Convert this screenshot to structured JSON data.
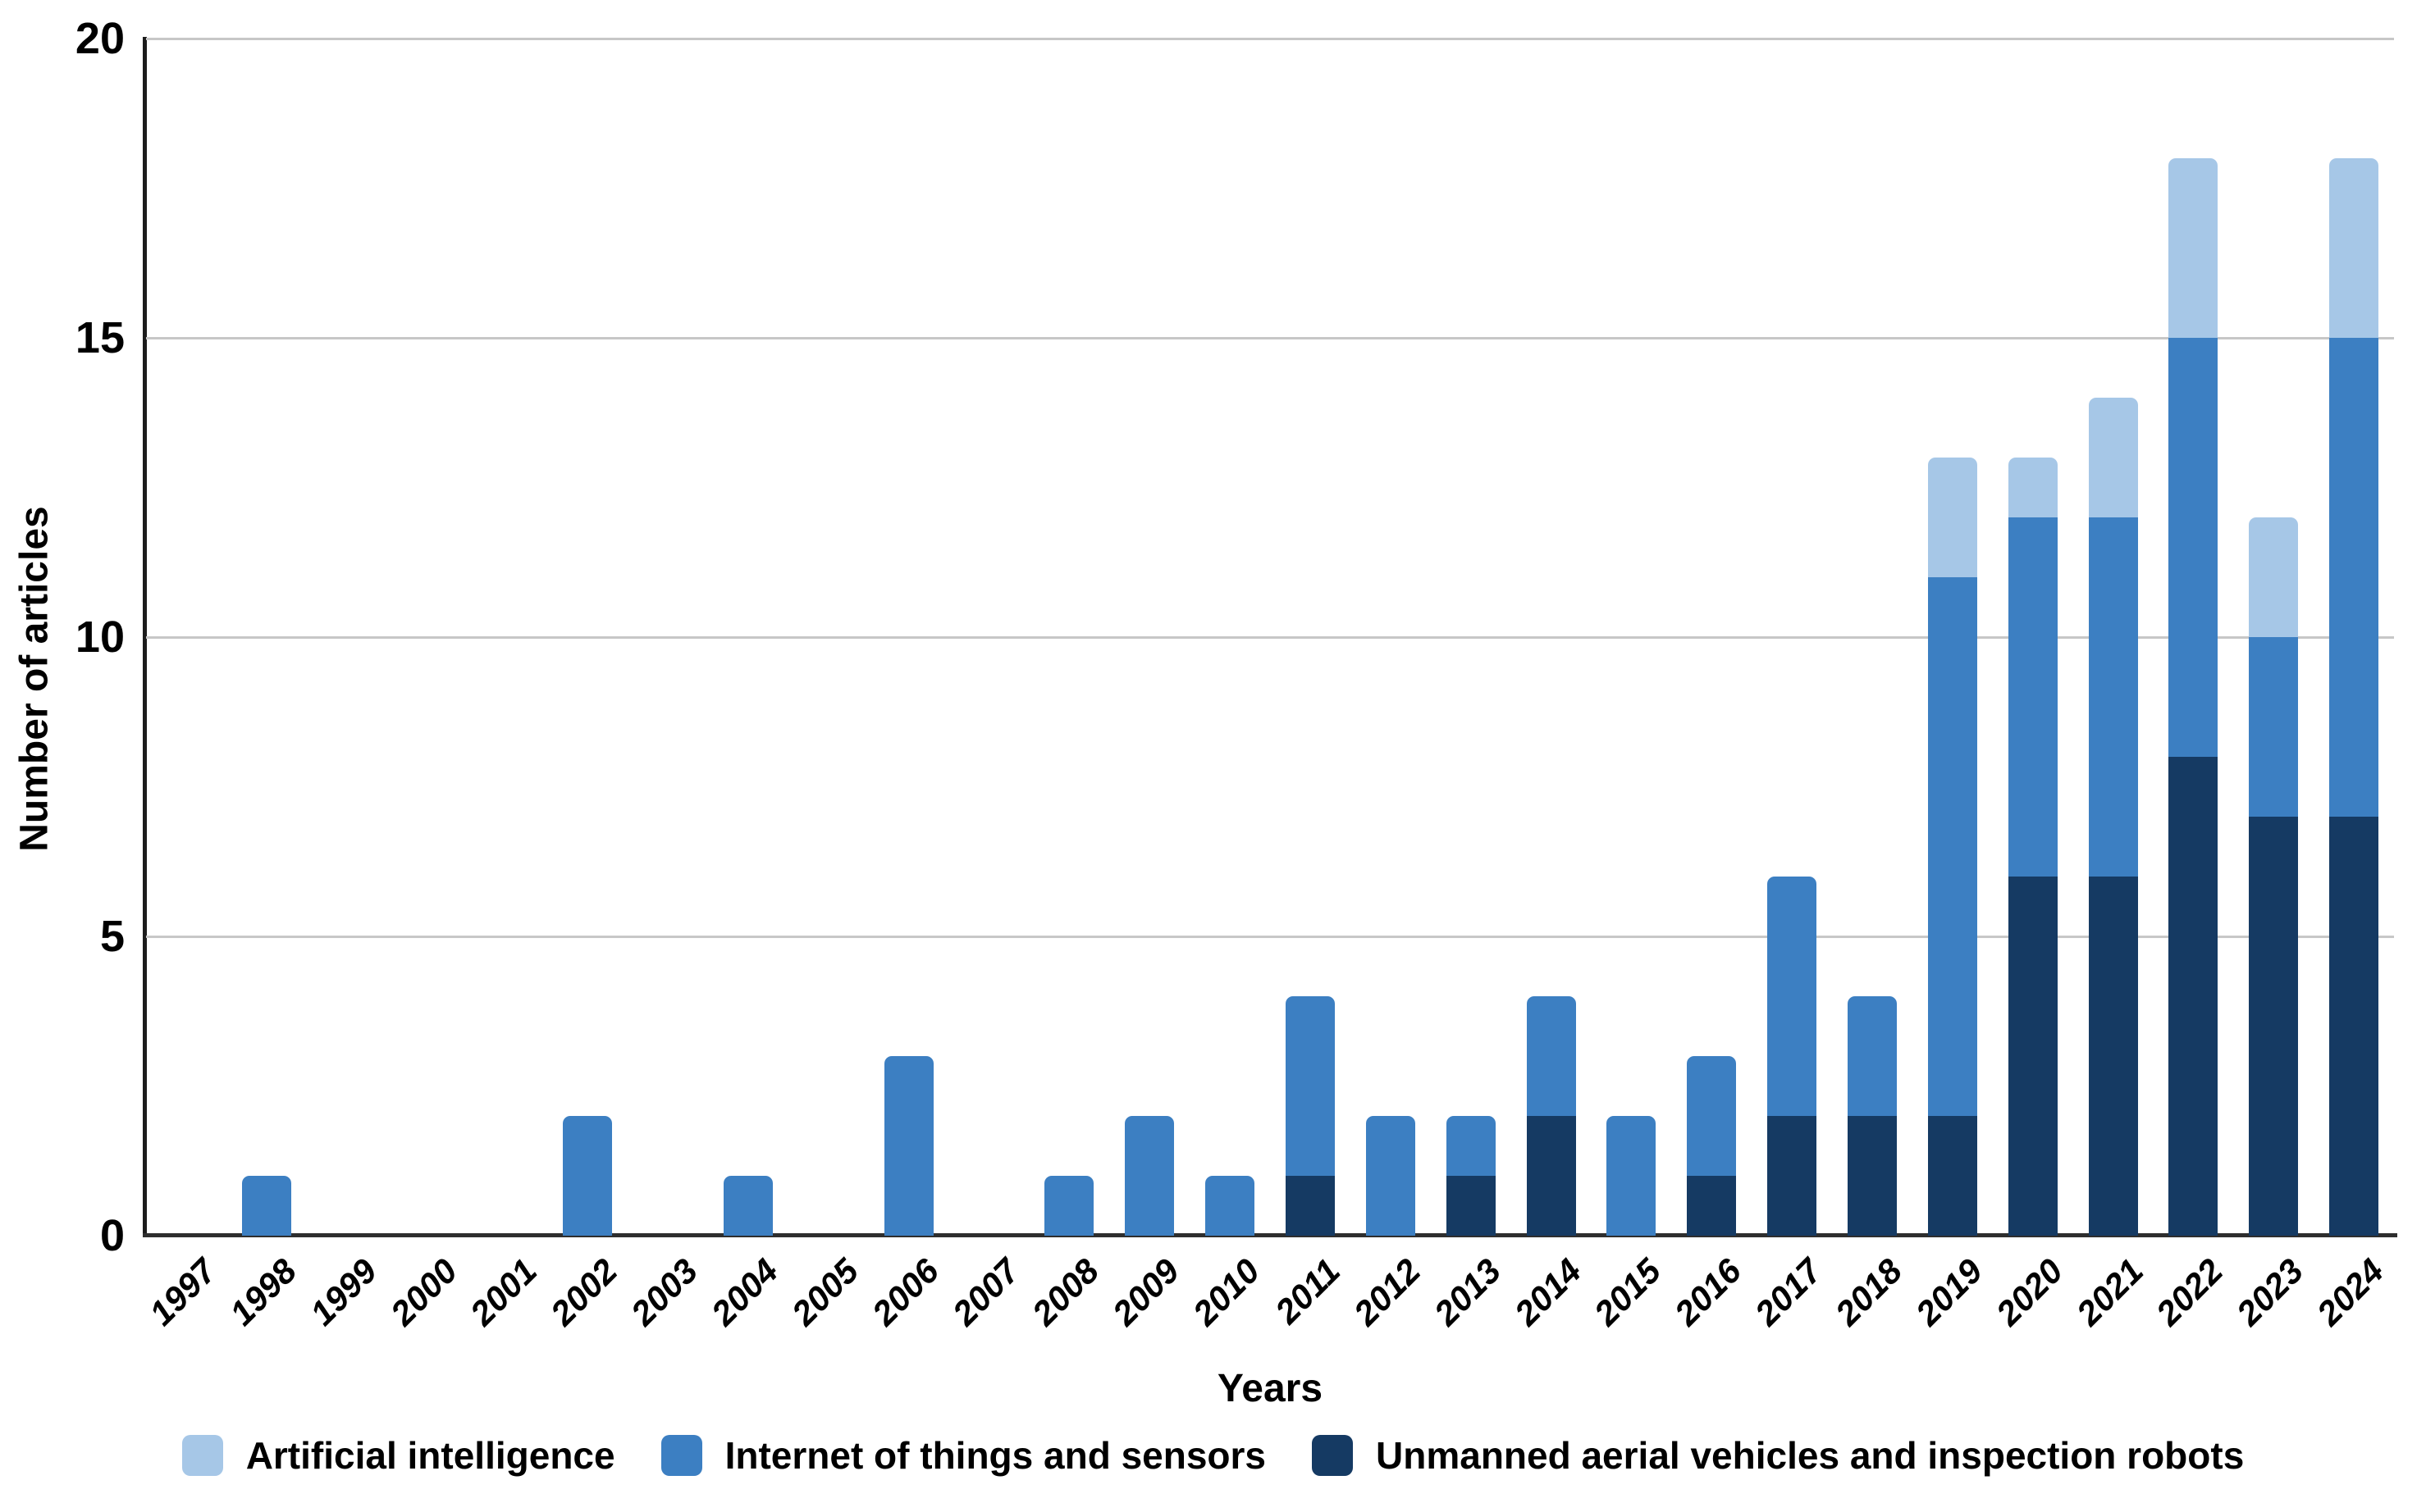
{
  "chart_data": {
    "type": "bar",
    "stacked": true,
    "title": "",
    "xlabel": "Years",
    "ylabel": "Number of articles",
    "ylim": [
      0,
      20
    ],
    "yticks": [
      0,
      5,
      10,
      15,
      20
    ],
    "grid": "horizontal",
    "legend_position": "bottom",
    "categories": [
      "1997",
      "1998",
      "1999",
      "2000",
      "2001",
      "2002",
      "2003",
      "2004",
      "2005",
      "2006",
      "2007",
      "2008",
      "2009",
      "2010",
      "2011",
      "2012",
      "2013",
      "2014",
      "2015",
      "2016",
      "2017",
      "2018",
      "2019",
      "2020",
      "2021",
      "2022",
      "2023",
      "2024"
    ],
    "series": [
      {
        "name": "Unmanned aerial vehicles and inspection robots",
        "color": "#153A63",
        "values": [
          0,
          0,
          0,
          0,
          0,
          0,
          0,
          0,
          0,
          0,
          0,
          0,
          0,
          0,
          1,
          0,
          1,
          2,
          0,
          1,
          2,
          2,
          2,
          6,
          6,
          8,
          7,
          7
        ]
      },
      {
        "name": "Internet of things and sensors",
        "color": "#3C7FC2",
        "values": [
          0,
          1,
          0,
          0,
          0,
          2,
          0,
          1,
          0,
          3,
          0,
          1,
          2,
          1,
          3,
          2,
          1,
          2,
          2,
          2,
          4,
          2,
          9,
          6,
          6,
          7,
          3,
          8
        ]
      },
      {
        "name": "Artificial intelligence",
        "color": "#A6C7E7",
        "values": [
          0,
          0,
          0,
          0,
          0,
          0,
          0,
          0,
          0,
          0,
          0,
          0,
          0,
          0,
          0,
          0,
          0,
          0,
          0,
          0,
          0,
          0,
          2,
          1,
          2,
          3,
          2,
          3
        ]
      }
    ],
    "totals": [
      0,
      1,
      0,
      0,
      0,
      2,
      0,
      1,
      0,
      3,
      0,
      1,
      2,
      1,
      4,
      2,
      2,
      4,
      2,
      3,
      6,
      4,
      13,
      13,
      14,
      18,
      12,
      18
    ],
    "legend": [
      {
        "label": "Artificial intelligence",
        "color": "#A6C7E7"
      },
      {
        "label": "Internet of things and sensors",
        "color": "#3C7FC2"
      },
      {
        "label": "Unmanned aerial vehicles and inspection robots",
        "color": "#153A63"
      }
    ],
    "colors": {
      "gridline": "#C7C7C7",
      "axis": "#1C1C1C",
      "text": "#000000",
      "background": "#FFFFFF"
    }
  }
}
